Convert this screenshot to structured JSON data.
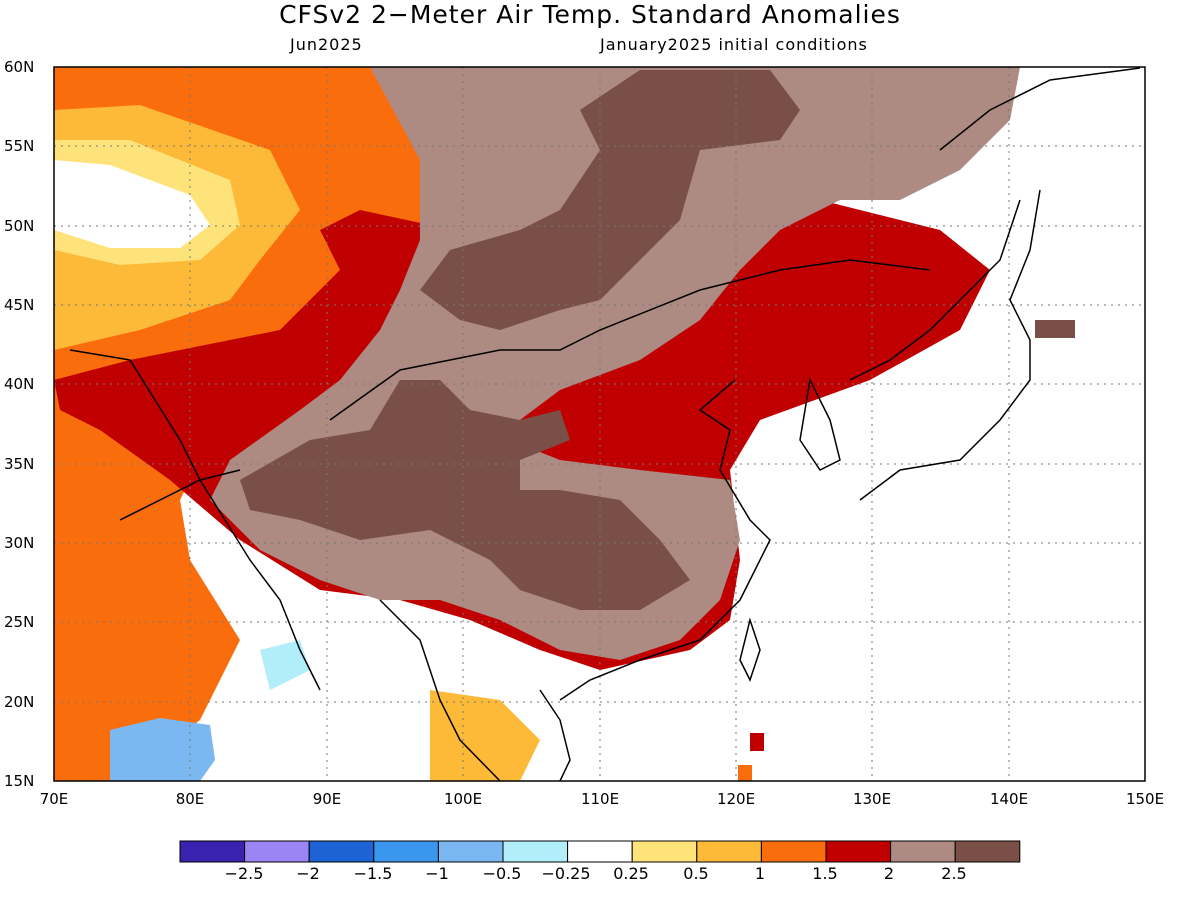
{
  "title": "CFSv2 2−Meter Air Temp. Standard Anomalies",
  "valid_month": "Jun2025",
  "initial_conditions": "January2025 initial conditions",
  "axes": {
    "lat_ticks": [
      {
        "value": 60,
        "label": "60N"
      },
      {
        "value": 55,
        "label": "55N"
      },
      {
        "value": 50,
        "label": "50N"
      },
      {
        "value": 45,
        "label": "45N"
      },
      {
        "value": 40,
        "label": "40N"
      },
      {
        "value": 35,
        "label": "35N"
      },
      {
        "value": 30,
        "label": "30N"
      },
      {
        "value": 25,
        "label": "25N"
      },
      {
        "value": 20,
        "label": "20N"
      },
      {
        "value": 15,
        "label": "15N"
      }
    ],
    "lon_ticks": [
      {
        "value": 70,
        "label": "70E"
      },
      {
        "value": 80,
        "label": "80E"
      },
      {
        "value": 90,
        "label": "90E"
      },
      {
        "value": 100,
        "label": "100E"
      },
      {
        "value": 110,
        "label": "110E"
      },
      {
        "value": 120,
        "label": "120E"
      },
      {
        "value": 130,
        "label": "130E"
      },
      {
        "value": 140,
        "label": "140E"
      },
      {
        "value": 150,
        "label": "150E"
      }
    ],
    "lon_range": [
      70,
      150
    ],
    "lat_range": [
      15,
      60
    ],
    "grid": true
  },
  "colorbar": {
    "colors": [
      "#3a22b0",
      "#9b84f4",
      "#1e63d6",
      "#3b96ee",
      "#7bb8f2",
      "#b1eefa",
      "#ffffff",
      "#fde37a",
      "#fdb938",
      "#fa6d0d",
      "#c00000",
      "#ad8a82",
      "#7a4f47"
    ],
    "labels": [
      "−2.5",
      "−2",
      "−1.5",
      "−1",
      "−0.5",
      "−0.25",
      "0.25",
      "0.5",
      "1",
      "1.5",
      "2",
      "2.5"
    ]
  }
}
